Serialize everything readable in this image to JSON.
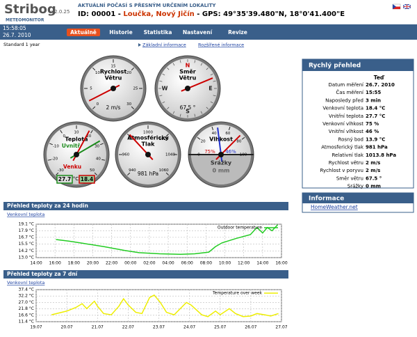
{
  "header": {
    "logo": "Stribog",
    "version": "v2.0.25",
    "subtitle": "METEOMONITOR",
    "tagline": "AKTUÁLNÍ POČASÍ S PŘESNÝM URČENÍM LOKALITY",
    "id": "ID: 00001 -",
    "location": "Loučka, Nový Jičín",
    "gps": "- GPS: 49°35'39.480\"N, 18°0'41.400\"E"
  },
  "nav": {
    "time": "15:58:05",
    "date": "26.7. 2010",
    "tabs": [
      "Aktuálně",
      "Historie",
      "Statistika",
      "Nastavení",
      "Revize"
    ],
    "active": 0
  },
  "subnav": {
    "period": "Standard 1 year",
    "links": [
      "Základní informace",
      "Rozšířené informace"
    ]
  },
  "gauges": [
    {
      "kind": "speed",
      "title": [
        "Rychlost",
        "Větru"
      ],
      "scale": [
        0,
        5,
        10,
        15,
        20,
        25,
        30
      ],
      "needles": [
        {
          "value": 2,
          "color": "#cc0000"
        }
      ],
      "value_label": "2 m/s"
    },
    {
      "kind": "direction",
      "title": [
        "Směr",
        "Větru"
      ],
      "compass": [
        "N",
        "E",
        "S",
        "W"
      ],
      "needles": [
        {
          "value": 67.5,
          "color": "#cc0000"
        }
      ],
      "value_label": "67.5 °"
    },
    {
      "kind": "temperature",
      "title": [
        "Teplota"
      ],
      "scale": [
        -30,
        -20,
        -10,
        0,
        10,
        20,
        30,
        40,
        50
      ],
      "needles": [
        {
          "name": "Uvnitř",
          "value": 27.7,
          "value_label": "27.7",
          "color": "#1a8a1a"
        },
        {
          "name": "Venku",
          "value": 18.4,
          "value_label": "18.4",
          "color": "#cc0000"
        }
      ],
      "unit": "°C"
    },
    {
      "kind": "pressure",
      "title": [
        "Atmosférický",
        "Tlak"
      ],
      "scale": [
        940,
        960,
        980,
        1000,
        1020,
        1040,
        1060
      ],
      "needles": [
        {
          "value": 981,
          "color": "#cc0000"
        }
      ],
      "value_label": "981 hPa"
    },
    {
      "kind": "humidity",
      "title": [
        "Vlhkost"
      ],
      "scale": [
        0,
        20,
        40,
        60,
        80,
        100
      ],
      "needles": [
        {
          "value": 75,
          "value_label": "75%",
          "color": "#cc0000"
        },
        {
          "value": 46,
          "value_label": "46%",
          "color": "#2233cc"
        }
      ],
      "rain_title": "Srážky",
      "rain_label": "0 mm"
    }
  ],
  "quick": {
    "title": "Rychlý přehled",
    "now": "Teď",
    "rows": [
      [
        "Datum měření",
        "26.7. 2010"
      ],
      [
        "Čas měření",
        "15:55"
      ],
      [
        "Naposledy před",
        "3 min"
      ],
      [
        "Venkovní teplota",
        "18.4 °C"
      ],
      [
        "Vnitřní teplota",
        "27.7 °C"
      ],
      [
        "Venkovní vlhkost",
        "75 %"
      ],
      [
        "Vnitřní vlhkost",
        "46 %"
      ],
      [
        "Rosný bod",
        "13.9 °C"
      ],
      [
        "Atmosferický tlak",
        "981 hPa"
      ],
      [
        "Relativní tlak",
        "1013.8 hPa"
      ],
      [
        "Rychlost větru",
        "2 m/s"
      ],
      [
        "Rychlost v poryvu",
        "2 m/s"
      ],
      [
        "Směr větru",
        "67.5 °"
      ],
      [
        "Srážky",
        "0 mm"
      ]
    ]
  },
  "info": {
    "title": "Informace",
    "link": "HomeWeather.net"
  },
  "chart_data": [
    {
      "type": "line",
      "title": "Přehled teploty za 24 hodin",
      "tab": "Venkovní teplota",
      "grid": true,
      "x": [
        2.1,
        3.5,
        5,
        7.2,
        9.4,
        10.9,
        13.1,
        15.3,
        16.8,
        18.3,
        19,
        19.7,
        21.2,
        22.7,
        23.4,
        24,
        24.5,
        25,
        25.6
      ],
      "series": [
        {
          "name": "Outdoor temperature",
          "color": "#22cc22",
          "values": [
            16.3,
            16.0,
            15.6,
            15.0,
            14.3,
            13.9,
            13.7,
            13.6,
            13.7,
            14.0,
            15.0,
            15.7,
            16.5,
            17.2,
            18.5,
            17.5,
            18.5,
            17.9,
            19.0
          ]
        }
      ],
      "xlim": [
        0,
        26
      ],
      "xticks": [
        {
          "value": 0,
          "label": "14:00"
        },
        {
          "value": 2,
          "label": "16:00"
        },
        {
          "value": 4,
          "label": "18:00"
        },
        {
          "value": 6,
          "label": "20:00"
        },
        {
          "value": 8,
          "label": "22:00"
        },
        {
          "value": 10,
          "label": "00:00"
        },
        {
          "value": 12,
          "label": "02:00"
        },
        {
          "value": 14,
          "label": "04:00"
        },
        {
          "value": 16,
          "label": "06:00"
        },
        {
          "value": 18,
          "label": "08:00"
        },
        {
          "value": 20,
          "label": "10:00"
        },
        {
          "value": 22,
          "label": "12:00"
        },
        {
          "value": 24,
          "label": "14:00"
        },
        {
          "value": 26,
          "label": "16:00"
        }
      ],
      "ylim": [
        13.0,
        19.1
      ],
      "yticks": [
        {
          "value": 19.1,
          "label": "19.1 °C"
        },
        {
          "value": 17.9,
          "label": "17.9 °C"
        },
        {
          "value": 16.7,
          "label": "16.7 °C"
        },
        {
          "value": 15.5,
          "label": "15.5 °C"
        },
        {
          "value": 14.2,
          "label": "14.2 °C"
        },
        {
          "value": 13.0,
          "label": "13.0 °C"
        }
      ]
    },
    {
      "type": "line",
      "title": "Přehled teploty za 7 dní",
      "tab": "Venkovní teplota",
      "grid": true,
      "x": [
        0.5,
        1.0,
        1.3,
        1.5,
        1.65,
        1.9,
        2.0,
        2.2,
        2.45,
        2.7,
        2.85,
        3.0,
        3.25,
        3.45,
        3.7,
        3.85,
        4.05,
        4.25,
        4.5,
        4.7,
        4.9,
        5.05,
        5.4,
        5.6,
        5.85,
        6.0,
        6.3,
        6.5,
        6.75,
        7.0,
        7.2,
        7.45,
        7.65,
        7.9
      ],
      "series": [
        {
          "name": "Temperature over week",
          "color": "#eeee00",
          "values": [
            17,
            20,
            23,
            26,
            22,
            28,
            24,
            18,
            17,
            24,
            30,
            25,
            19,
            18,
            31,
            33,
            27,
            19,
            17,
            22,
            27,
            25,
            17,
            15.5,
            20,
            17,
            22,
            18,
            15.5,
            16,
            18,
            17,
            16,
            18
          ]
        }
      ],
      "xlim": [
        0,
        8
      ],
      "xticks": [
        {
          "value": 0,
          "label": "19.07"
        },
        {
          "value": 1,
          "label": "20.07"
        },
        {
          "value": 2,
          "label": "21.07"
        },
        {
          "value": 3,
          "label": "22.07"
        },
        {
          "value": 4,
          "label": "23.07"
        },
        {
          "value": 5,
          "label": "24.07"
        },
        {
          "value": 6,
          "label": "25.07"
        },
        {
          "value": 7,
          "label": "26.07"
        },
        {
          "value": 8,
          "label": "27.07"
        }
      ],
      "ylim": [
        11.4,
        37.4
      ],
      "yticks": [
        {
          "value": 37.4,
          "label": "37.4 °C"
        },
        {
          "value": 32.2,
          "label": "32.2 °C"
        },
        {
          "value": 27.0,
          "label": "27.0 °C"
        },
        {
          "value": 21.8,
          "label": "21.8 °C"
        },
        {
          "value": 16.6,
          "label": "16.6 °C"
        },
        {
          "value": 11.4,
          "label": "11.4 °C"
        }
      ]
    }
  ]
}
